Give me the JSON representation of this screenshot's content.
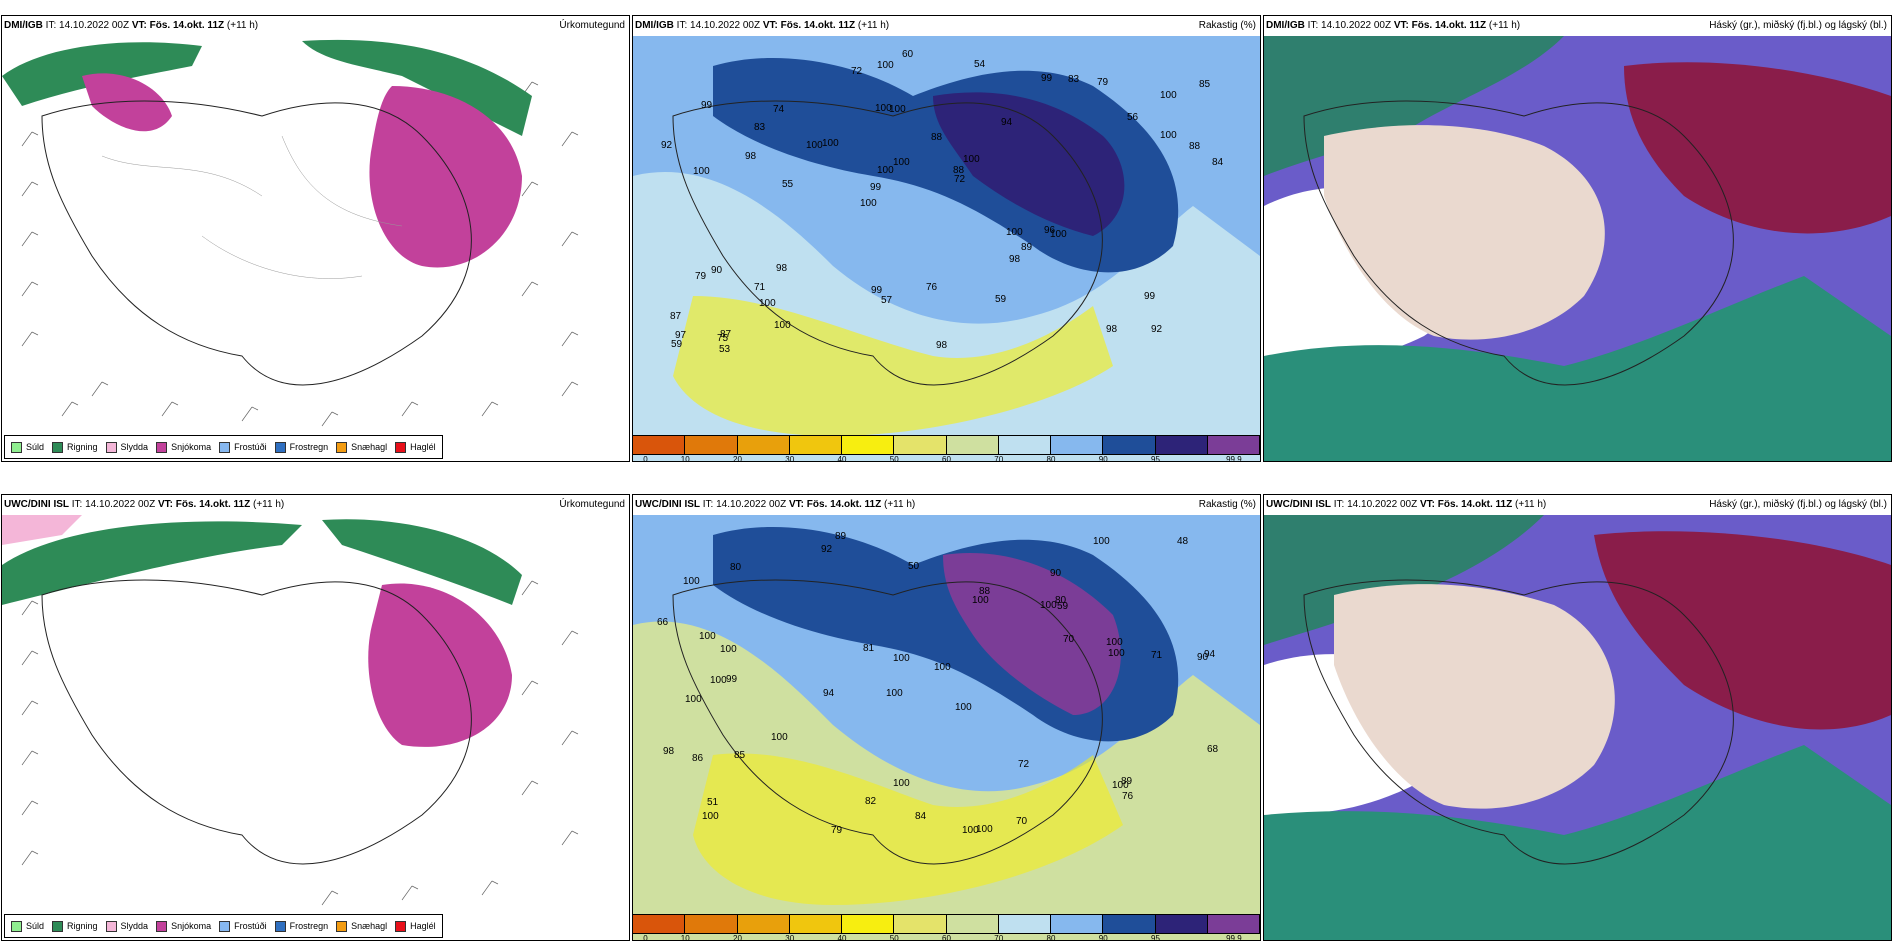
{
  "rows": [
    {
      "model": "DMI/IGB",
      "it_label": "IT:",
      "it_value": "14.10.2022 00Z",
      "vt_label": "VT:",
      "vt_value": "Fös. 14.okt. 11Z",
      "lead": "(+11 h)"
    },
    {
      "model": "UWC/DINI ISL",
      "it_label": "IT:",
      "it_value": "14.10.2022 00Z",
      "vt_label": "VT:",
      "vt_value": "Fös. 14.okt. 11Z",
      "lead": "(+11 h)"
    }
  ],
  "titles": {
    "precip": "Úrkomutegund",
    "humidity": "Rakastig (%)",
    "cloud": "Háský (gr.), miðský (fj.bl.) og lágský (bl.)"
  },
  "legend": [
    {
      "label": "Súld",
      "color": "#90ee90"
    },
    {
      "label": "Rigning",
      "color": "#2e8b57"
    },
    {
      "label": "Slydda",
      "color": "#f4b6d8"
    },
    {
      "label": "Snjókoma",
      "color": "#c2419b"
    },
    {
      "label": "Frostúði",
      "color": "#87b8f0"
    },
    {
      "label": "Frostregn",
      "color": "#2f6fc0"
    },
    {
      "label": "Snæhagl",
      "color": "#f39c12"
    },
    {
      "label": "Haglél",
      "color": "#e8101a"
    }
  ],
  "colorbar": {
    "colors": [
      "#d9550b",
      "#e0790a",
      "#e8a00c",
      "#f0c60e",
      "#f7ee10",
      "#e4e36a",
      "#cfe0a0",
      "#bfe0f0",
      "#86b8ee",
      "#1f4e99",
      "#2d2378",
      "#7b3d97"
    ],
    "labels": [
      "0",
      "10",
      "20",
      "30",
      "40",
      "50",
      "60",
      "70",
      "80",
      "90",
      "95",
      "99.9"
    ]
  },
  "humidity_labels": {
    "top": [
      "92",
      "100",
      "100",
      "100",
      "94",
      "87",
      "100",
      "88",
      "90",
      "100",
      "87",
      "100",
      "100",
      "100",
      "100",
      "99",
      "100",
      "84",
      "100",
      "100",
      "99",
      "99",
      "100",
      "74",
      "99",
      "98",
      "98",
      "99",
      "96",
      "98",
      "100",
      "98",
      "98",
      "100",
      "88",
      "88",
      "97",
      "57",
      "72",
      "79",
      "56",
      "85",
      "89",
      "59",
      "71",
      "53",
      "59",
      "76",
      "79",
      "60",
      "55",
      "92",
      "83",
      "83",
      "75",
      "54",
      "72",
      "100"
    ],
    "bottom": [
      "89",
      "90",
      "90",
      "100",
      "100",
      "99",
      "100",
      "100",
      "100",
      "100",
      "100",
      "100",
      "92",
      "94",
      "100",
      "100",
      "100",
      "100",
      "70",
      "100",
      "100",
      "100",
      "94",
      "71",
      "98",
      "100",
      "100",
      "100",
      "89",
      "86",
      "100",
      "88",
      "85",
      "81",
      "72",
      "68",
      "100",
      "82",
      "48",
      "50",
      "51",
      "79",
      "70",
      "80",
      "84",
      "59",
      "76",
      "80",
      "66"
    ]
  }
}
